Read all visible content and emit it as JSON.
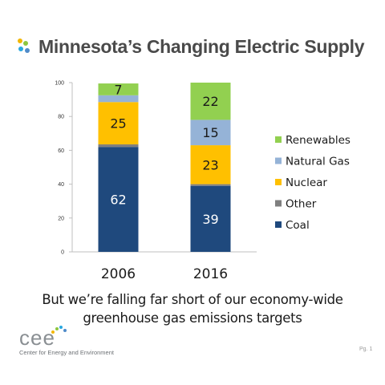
{
  "slide": {
    "title": "Minnesota’s Changing Electric Supply",
    "subtitle_lines": [
      "But we’re falling far short of our economy-wide",
      "greenhouse gas emissions targets"
    ],
    "org_logo_text": "cee",
    "org_name": "Center for Energy and Environment",
    "page_label": "Pg. 1",
    "title_dot_colors": [
      "#f2b705",
      "#8dc63f",
      "#29a8e0",
      "#4f8bc9"
    ]
  },
  "chart_data": {
    "type": "bar",
    "stacked": true,
    "categories": [
      "2006",
      "2016"
    ],
    "series": [
      {
        "name": "Coal",
        "color": "#1f497d",
        "values": [
          62,
          39
        ]
      },
      {
        "name": "Other",
        "color": "#7f7f7f",
        "values": [
          1.5,
          1
        ]
      },
      {
        "name": "Nuclear",
        "color": "#ffc000",
        "values": [
          25,
          23
        ]
      },
      {
        "name": "Natural Gas",
        "color": "#95b3d7",
        "values": [
          4,
          15
        ]
      },
      {
        "name": "Renewables",
        "color": "#92d050",
        "values": [
          7,
          22
        ]
      }
    ],
    "data_labels": [
      {
        "series": "Coal",
        "labels": [
          "62",
          "39"
        ]
      },
      {
        "series": "Other",
        "labels": [
          "",
          ""
        ]
      },
      {
        "series": "Nuclear",
        "labels": [
          "25",
          "23"
        ]
      },
      {
        "series": "Natural Gas",
        "labels": [
          "",
          "15"
        ]
      },
      {
        "series": "Renewables",
        "labels": [
          "7",
          "22"
        ]
      }
    ],
    "yticks": [
      "0",
      "20",
      "40",
      "60",
      "80",
      "100"
    ],
    "ylim": [
      0,
      100
    ],
    "legend_position": "right",
    "legend_order": [
      "Renewables",
      "Natural Gas",
      "Nuclear",
      "Other",
      "Coal"
    ]
  }
}
